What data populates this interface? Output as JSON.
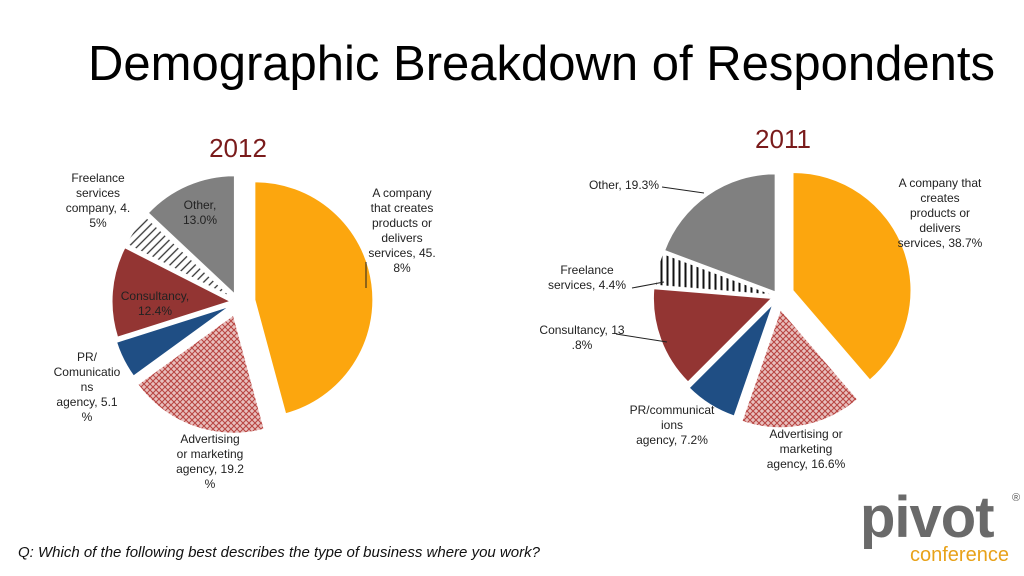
{
  "page": {
    "title": "Demographic Breakdown of Respondents",
    "question": "Q: Which of the following best describes the type of business where you work?"
  },
  "logo": {
    "word": "pivot",
    "sub": "conference",
    "reg": "®"
  },
  "colors": {
    "company": "#fca60e",
    "advertising": "#c0504d",
    "pr": "#1f4e84",
    "consultancy": "#933533",
    "freelance": "#333333",
    "other": "#808080"
  },
  "chart_data": [
    {
      "type": "pie",
      "title": "2012",
      "slices": [
        {
          "key": "company",
          "value": 45.8,
          "label": [
            "A company",
            "that creates",
            "products or",
            "delivers",
            "services, 45.",
            "8%"
          ]
        },
        {
          "key": "advertising",
          "value": 19.2,
          "label": [
            "Advertising",
            "or marketing",
            "agency, 19.2",
            "%"
          ]
        },
        {
          "key": "pr",
          "value": 5.1,
          "label": [
            "PR/",
            "Comunicatio",
            "ns",
            "agency, 5.1",
            "%"
          ]
        },
        {
          "key": "consultancy",
          "value": 12.4,
          "label": [
            "Consultancy,",
            "12.4%"
          ]
        },
        {
          "key": "freelance",
          "value": 4.5,
          "label": [
            "Freelance",
            "services",
            "company, 4.",
            "5%"
          ]
        },
        {
          "key": "other",
          "value": 13.0,
          "label": [
            "Other,",
            "13.0%"
          ]
        }
      ]
    },
    {
      "type": "pie",
      "title": "2011",
      "slices": [
        {
          "key": "company",
          "value": 38.7,
          "label": [
            "A company that",
            "creates",
            "products or",
            "delivers",
            "services, 38.7%"
          ]
        },
        {
          "key": "advertising",
          "value": 16.6,
          "label": [
            "Advertising or",
            "marketing",
            "agency, 16.6%"
          ]
        },
        {
          "key": "pr",
          "value": 7.2,
          "label": [
            "PR/communicat",
            "ions",
            "agency, 7.2%"
          ]
        },
        {
          "key": "consultancy",
          "value": 13.8,
          "label": [
            "Consultancy, 13",
            ".8%"
          ]
        },
        {
          "key": "freelance",
          "value": 4.4,
          "label": [
            "Freelance",
            "services, 4.4%"
          ]
        },
        {
          "key": "other",
          "value": 19.3,
          "label": [
            "Other, 19.3%"
          ]
        }
      ]
    }
  ]
}
